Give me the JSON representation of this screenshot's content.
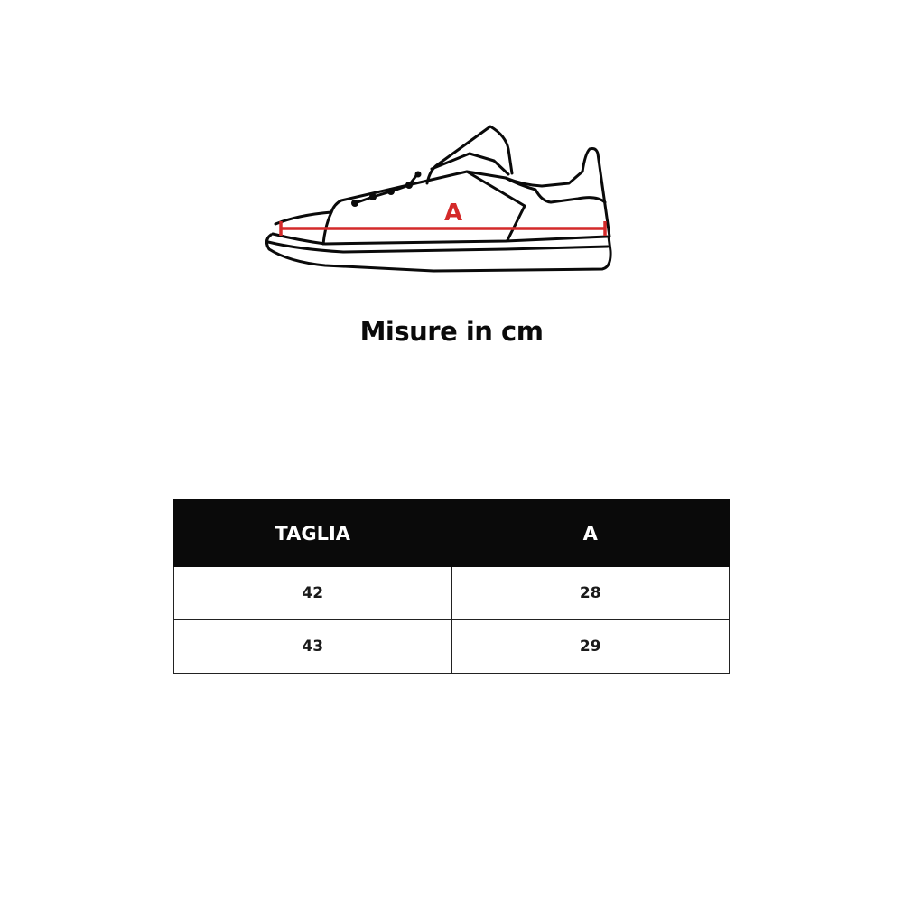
{
  "diagram": {
    "measure_label": "A",
    "measure_color": "#d42a2a"
  },
  "title": "Misure in cm",
  "table": {
    "headers": [
      "TAGLIA",
      "A"
    ],
    "rows": [
      [
        "42",
        "28"
      ],
      [
        "43",
        "29"
      ]
    ]
  }
}
